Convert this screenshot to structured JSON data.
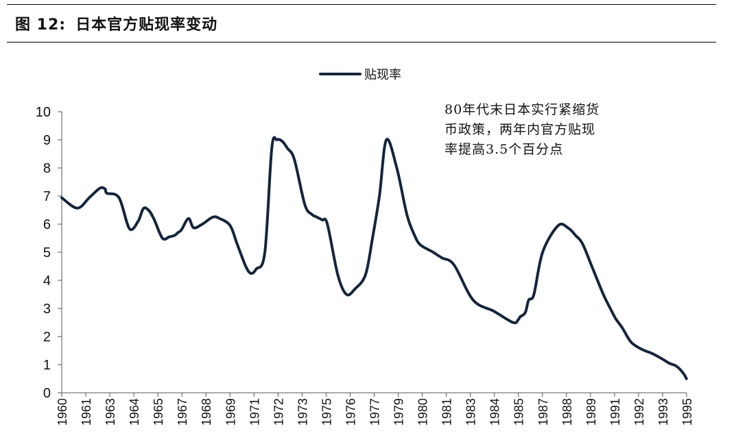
{
  "figure": {
    "label": "图 12:",
    "title": "日本官方贴现率变动"
  },
  "annotation": [
    "80年代末日本实行紧缩货",
    "币政策，两年内官方贴现",
    "率提高3.5个百分点"
  ],
  "colors": {
    "line": "#13253d",
    "axis": "#555555"
  },
  "chart_data": {
    "type": "line",
    "series": [
      {
        "name": "贴现率",
        "x": [
          0,
          0.9,
          1.6,
          2.2,
          2.5,
          2.6,
          3.3,
          3.9,
          4.4,
          4.7,
          5.0,
          5.3,
          5.8,
          6.2,
          6.5,
          6.7,
          6.9,
          7.3,
          7.6,
          8.1,
          8.7,
          9.1,
          9.7,
          10.1,
          10.6,
          10.9,
          11.2,
          11.7,
          12.1,
          12.4,
          12.7,
          13.0,
          13.4,
          14.0,
          14.4,
          14.7,
          15.0,
          15.3,
          15.9,
          16.4,
          16.9,
          17.5,
          17.9,
          18.3,
          18.7,
          19.3,
          19.9,
          20.4,
          20.6,
          20.8,
          21.1,
          21.4,
          21.9,
          22.6,
          23.7,
          24.9,
          26.0,
          26.3,
          26.4,
          26.7,
          26.9,
          27.2,
          27.7,
          28.6,
          29.2,
          29.6,
          30.0,
          30.6,
          31.2,
          31.6,
          31.9,
          32.3,
          32.8,
          33.4,
          34.0,
          34.6,
          35.0,
          35.4,
          35.8,
          35.99
        ],
        "y": [
          6.94,
          6.57,
          6.95,
          7.28,
          7.25,
          7.1,
          6.94,
          5.84,
          6.1,
          6.55,
          6.5,
          6.2,
          5.5,
          5.55,
          5.6,
          5.7,
          5.8,
          6.2,
          5.87,
          6.0,
          6.25,
          6.2,
          5.95,
          5.3,
          4.5,
          4.25,
          4.4,
          5.0,
          8.7,
          9.0,
          8.95,
          8.7,
          8.3,
          6.7,
          6.35,
          6.25,
          6.15,
          6.0,
          4.2,
          3.5,
          3.7,
          4.2,
          5.5,
          7.0,
          9.0,
          8.0,
          6.3,
          5.5,
          5.3,
          5.2,
          5.1,
          5.0,
          4.8,
          4.55,
          3.3,
          2.9,
          2.5,
          2.6,
          2.7,
          2.85,
          3.3,
          3.5,
          5.0,
          5.95,
          5.85,
          5.6,
          5.3,
          4.4,
          3.5,
          3.0,
          2.65,
          2.3,
          1.8,
          1.55,
          1.4,
          1.2,
          1.05,
          0.95,
          0.7,
          0.5
        ]
      }
    ],
    "categories": [
      "1960",
      "1961",
      "1963",
      "1964",
      "1965",
      "1967",
      "1968",
      "1969",
      "1971",
      "1972",
      "1973",
      "1975",
      "1976",
      "1977",
      "1979",
      "1980",
      "1981",
      "1983",
      "1984",
      "1985",
      "1987",
      "1988",
      "1989",
      "1991",
      "1992",
      "1993",
      "1995"
    ],
    "ylim": [
      0,
      10
    ],
    "yticks": [
      0,
      1,
      2,
      3,
      4,
      5,
      6,
      7,
      8,
      9,
      10
    ],
    "legend_position": "top-center",
    "grid": false
  }
}
